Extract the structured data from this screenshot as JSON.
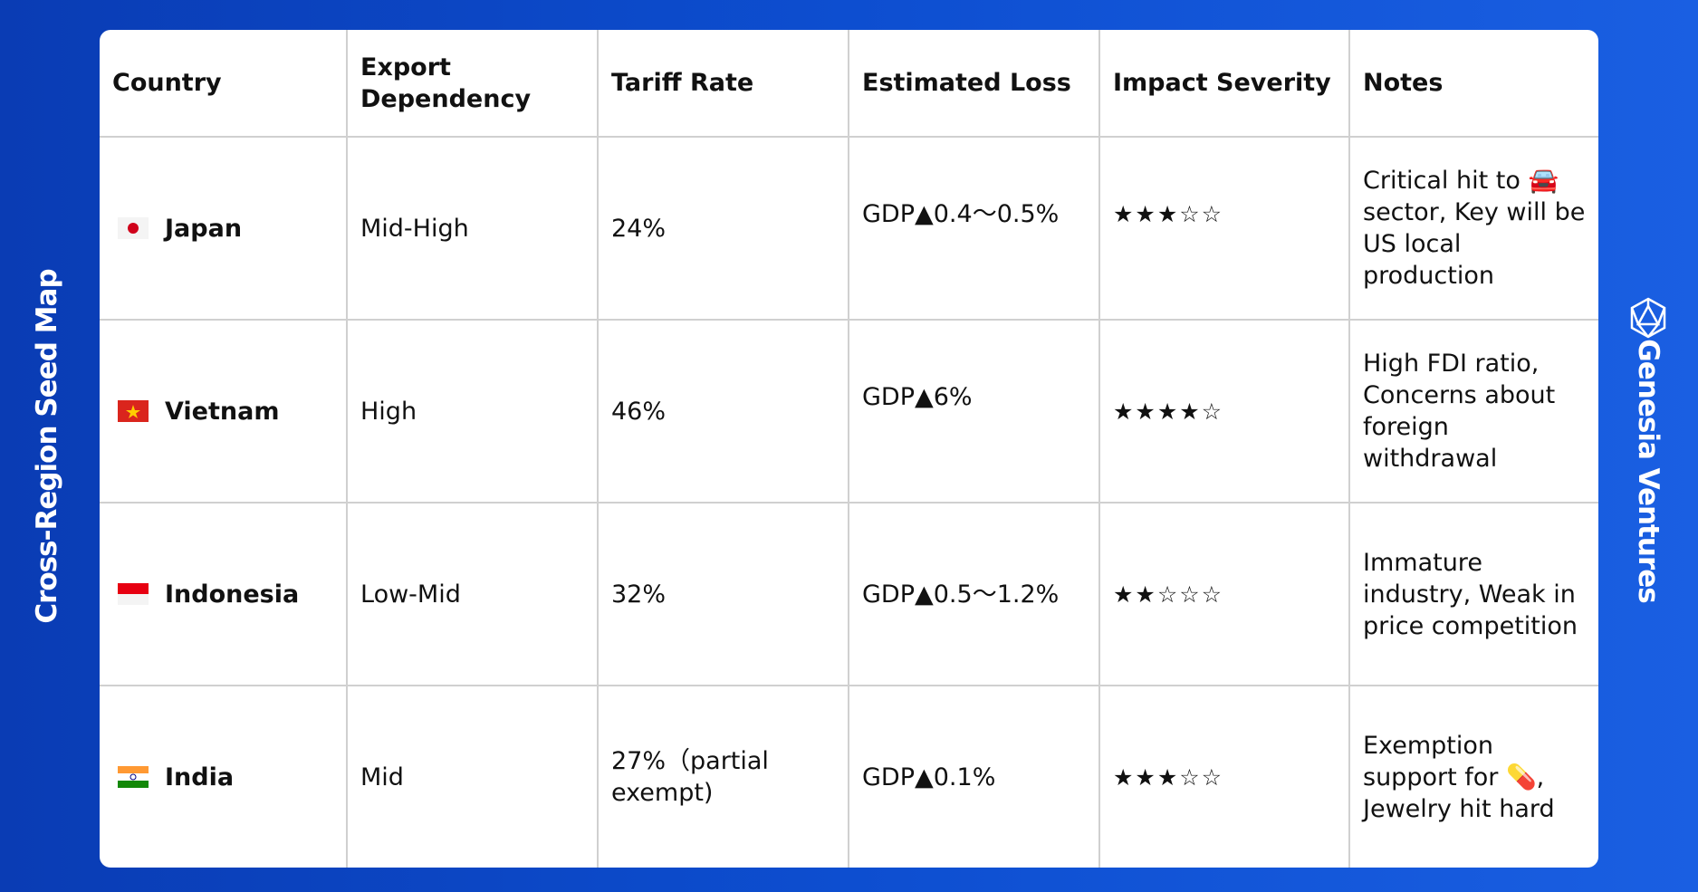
{
  "side": {
    "left": "Cross-Region Seed Map",
    "right": "Genesia Ventures"
  },
  "table": {
    "headers": [
      "Country",
      "Export Dependency",
      "Tariff Rate",
      "Estimated Loss",
      "Impact Severity",
      "Notes"
    ],
    "rows": [
      [
        "Japan",
        "Mid-High",
        "24%",
        "GDP▲0.4〜0.5%",
        "★★★☆☆",
        "Critical hit to 🚘 sector, Key will be US local production"
      ],
      [
        "Vietnam",
        "High",
        "46%",
        "GDP▲6%",
        "★★★★☆",
        "High FDI ratio, Concerns about foreign withdrawal"
      ],
      [
        "Indonesia",
        "Low-Mid",
        "32%",
        "GDP▲0.5〜1.2%",
        "★★☆☆☆",
        "Immature industry, Weak in price competition"
      ],
      [
        "India",
        "Mid",
        "27%（partial exempt)",
        "GDP▲0.1%",
        "★★★☆☆",
        "Exemption support for 💊, Jewelry hit hard"
      ]
    ]
  }
}
